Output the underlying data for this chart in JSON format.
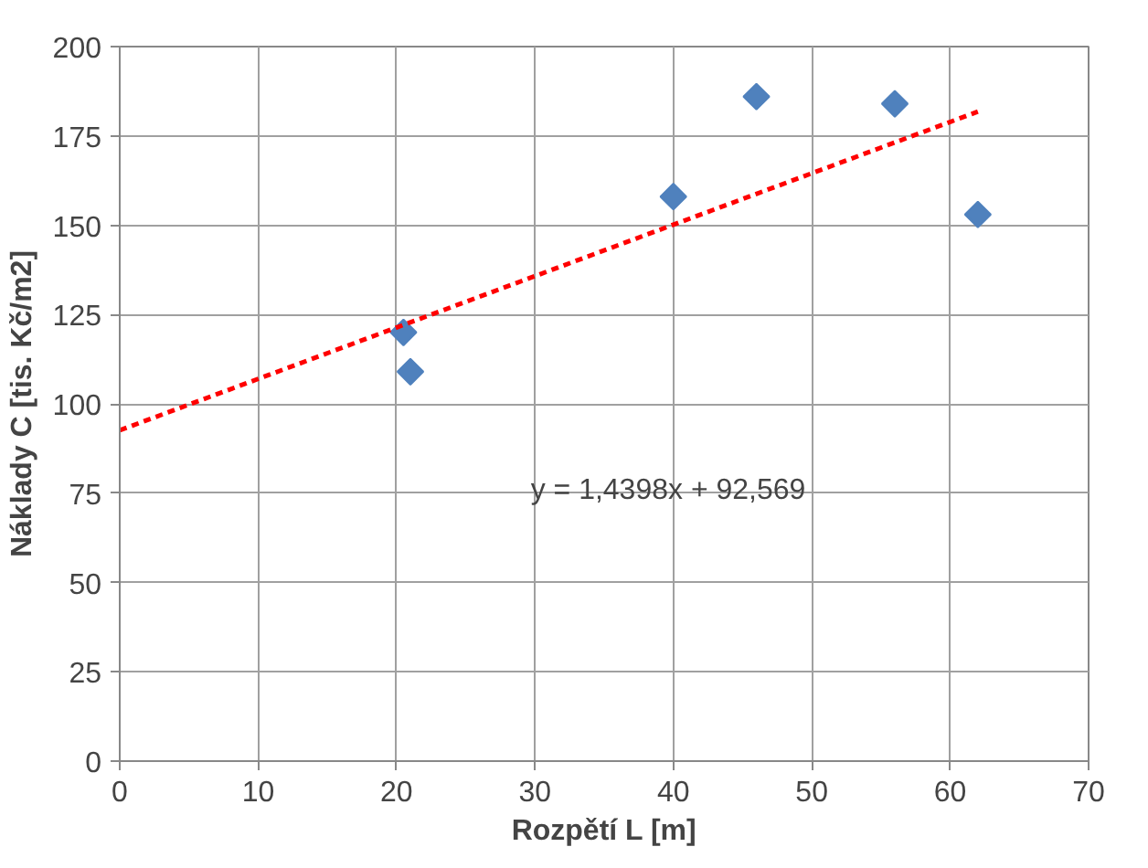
{
  "chart_data": {
    "type": "scatter",
    "xlabel": "Rozpětí L [m]",
    "ylabel": "Náklady C [tis. Kč/m2]",
    "xlim": [
      0,
      70
    ],
    "xticks": [
      0,
      10,
      20,
      30,
      40,
      50,
      60,
      70
    ],
    "ylim": [
      0,
      200
    ],
    "yticks": [
      0,
      25,
      50,
      75,
      100,
      125,
      150,
      175,
      200
    ],
    "grid": true,
    "marker": "diamond",
    "series": [
      {
        "color": "#4f81bd",
        "x": [
          20.5,
          21,
          40,
          46,
          56,
          62
        ],
        "values": [
          120,
          109,
          158,
          186,
          184,
          153
        ]
      },
      {
        "type": "line",
        "color": "#ff0000",
        "line_style": "dashed",
        "marker": "none",
        "x": [
          0,
          62
        ],
        "values": [
          92.6,
          181.8
        ]
      }
    ],
    "annotations": [
      "y = 1,4398x + 92,569"
    ]
  }
}
